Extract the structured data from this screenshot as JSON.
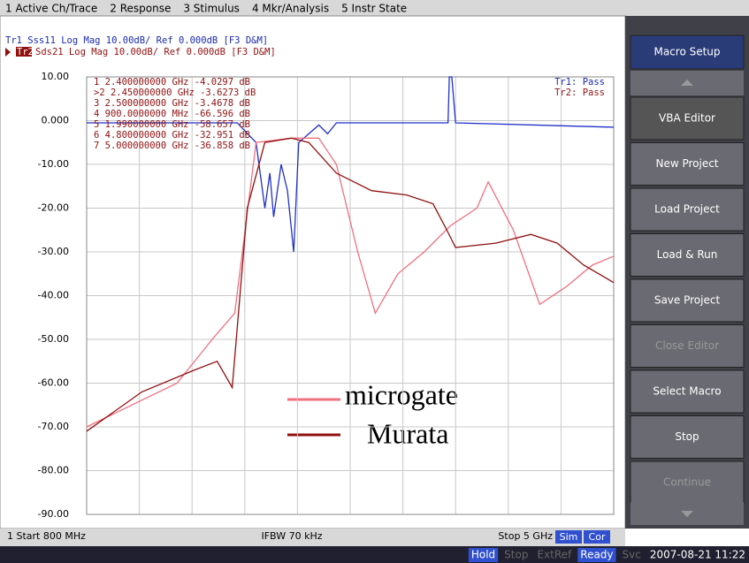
{
  "menu": [
    "1 Active Ch/Trace",
    "2 Response",
    "3 Stimulus",
    "4 Mkr/Analysis",
    "5 Instr State"
  ],
  "header": {
    "trace1": "Tr1 Sss11 Log Mag 10.00dB/ Ref 0.000dB [F3 D&M]",
    "trace2": "Sds21 Log Mag 10.00dB/ Ref 0.000dB [F3 D&M]",
    "trace2_tag": "Tr2"
  },
  "markers": [
    "1   2.400000000 GHz  -4.0297 dB",
    ">2   2.450000000 GHz  -3.6273 dB",
    "3   2.500000000 GHz  -3.4678 dB",
    "4   900.0000000 MHz -66.596 dB",
    "5   1.990000000 GHz  -58.657 dB",
    "6   4.800000000 GHz  -32.951 dB",
    "7   5.000000000 GHz  -36.858 dB"
  ],
  "pass": [
    "Tr1: Pass",
    "Tr2: Pass"
  ],
  "softkeys": [
    "Macro Setup",
    "VBA Editor",
    "New Project",
    "Load Project",
    "Load & Run",
    "Save Project",
    "Close Editor",
    "Select Macro",
    "Stop",
    "Continue"
  ],
  "footer": {
    "start": "1  Start 800 MHz",
    "ifbw": "IFBW 70 kHz",
    "stop": "Stop 5 GHz",
    "sim": "Sim",
    "cor": "Cor"
  },
  "status": [
    "Hold",
    "Stop",
    "ExtRef",
    "Ready",
    "Svc",
    "2007-08-21 11:22"
  ],
  "chart_data": {
    "type": "line",
    "xlim": [
      0.8,
      5
    ],
    "ylim": [
      -90,
      10
    ],
    "yticks": [
      {
        "value": 10,
        "label": "10.00"
      },
      {
        "value": 0,
        "label": "0.000"
      },
      {
        "value": -10,
        "label": "-10.00"
      },
      {
        "value": -20,
        "label": "-20.00"
      },
      {
        "value": -30,
        "label": "-30.00"
      },
      {
        "value": -40,
        "label": "-40.00"
      },
      {
        "value": -50,
        "label": "-50.00"
      },
      {
        "value": -60,
        "label": "-60.00"
      },
      {
        "value": -70,
        "label": "-70.00"
      },
      {
        "value": -80,
        "label": "-80.00"
      },
      {
        "value": -90,
        "label": "-90.00"
      }
    ],
    "grid": true,
    "series": [
      {
        "color": "#2030c8",
        "x": [
          0.8,
          2.0,
          2.15,
          2.22,
          2.26,
          2.29,
          2.35,
          2.4,
          2.45,
          2.49,
          2.65,
          2.72,
          2.79,
          3.68,
          3.69,
          3.71,
          3.74,
          5.0
        ],
        "values": [
          -0.5,
          -0.5,
          -5,
          -20,
          -12,
          -22,
          -10,
          -16,
          -30,
          -5,
          -1,
          -3,
          -0.5,
          -0.5,
          10,
          10,
          -0.5,
          -1.5
        ]
      },
      {
        "name": "microgate",
        "color": "#f07080",
        "x": [
          0.8,
          1.52,
          1.8,
          1.98,
          2.15,
          2.43,
          2.65,
          2.79,
          2.96,
          3.1,
          3.28,
          3.49,
          3.7,
          3.91,
          4.0,
          4.2,
          4.41,
          4.62,
          4.83,
          5.0
        ],
        "values": [
          -70,
          -60,
          -50,
          -44,
          -5,
          -4,
          -4,
          -10,
          -30,
          -44,
          -35,
          -30,
          -24,
          -20,
          -14,
          -25,
          -42,
          -38,
          -33,
          -31
        ]
      },
      {
        "name": "Murata",
        "color": "#901010",
        "x": [
          0.8,
          1.24,
          1.66,
          1.84,
          1.96,
          2.08,
          2.22,
          2.43,
          2.57,
          2.79,
          3.07,
          3.35,
          3.56,
          3.67,
          3.74,
          4.06,
          4.34,
          4.55,
          4.76,
          5.0
        ],
        "values": [
          -71,
          -62,
          -57,
          -55,
          -61,
          -20,
          -5,
          -4,
          -5,
          -12,
          -16,
          -17,
          -19,
          -25,
          -29,
          -28,
          -26,
          -28,
          -33,
          -37
        ]
      }
    ]
  }
}
